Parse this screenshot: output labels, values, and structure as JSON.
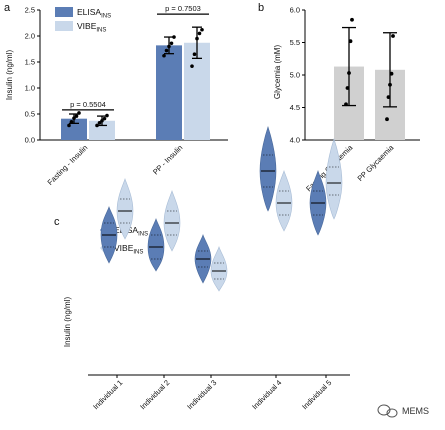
{
  "panels": {
    "a": "a",
    "b": "b",
    "c": "c"
  },
  "legend": [
    {
      "label": "ELISA",
      "sub": "INS",
      "color": "#5b7db5"
    },
    {
      "label": "VIBE",
      "sub": "INS",
      "color": "#c9d8ea"
    }
  ],
  "watermark": {
    "icon": "wechat-icon",
    "text": "MEMS"
  },
  "colors": {
    "elisa": "#5b7db5",
    "vibe": "#c9d8ea",
    "grey": "#d0d0d0"
  },
  "chart_data": [
    {
      "id": "a",
      "type": "bar",
      "ylabel": "Insulin (ng/ml)",
      "ylim": [
        0,
        2.5
      ],
      "yticks": [
        "0.0",
        "0.5",
        "1.0",
        "1.5",
        "2.0",
        "2.5"
      ],
      "categories": [
        "Fasting - Insulin",
        "PP - Insulin"
      ],
      "series": [
        {
          "name": "ELISA",
          "values": [
            0.41,
            1.82
          ],
          "err": [
            0.09,
            0.16
          ],
          "points": [
            [
              0.28,
              0.35,
              0.42,
              0.46,
              0.52
            ],
            [
              1.62,
              1.72,
              1.8,
              1.86,
              1.98
            ]
          ]
        },
        {
          "name": "VIBE",
          "values": [
            0.37,
            1.87
          ],
          "err": [
            0.09,
            0.3
          ],
          "points": [
            [
              0.28,
              0.33,
              0.37,
              0.41,
              0.47
            ],
            [
              1.42,
              1.65,
              1.95,
              2.05,
              2.12
            ]
          ]
        }
      ],
      "annotations": [
        {
          "text": "p = 0.5504",
          "category": 0,
          "y": 0.58
        },
        {
          "text": "p = 0.7503",
          "category": 1,
          "y": 2.42
        }
      ]
    },
    {
      "id": "b",
      "type": "bar",
      "ylabel": "Glycemia (mM)",
      "ylim": [
        4.0,
        6.0
      ],
      "yticks": [
        "4.0",
        "4.5",
        "5.0",
        "5.5",
        "6.0"
      ],
      "categories": [
        "Fasting Glycaemia",
        "PP Glycaemia"
      ],
      "series": [
        {
          "name": "",
          "values": [
            5.13,
            5.08
          ],
          "err": [
            0.6,
            0.57
          ],
          "points": [
            [
              4.55,
              4.8,
              5.03,
              5.52,
              5.85
            ],
            [
              4.32,
              4.66,
              4.85,
              5.02,
              5.6
            ]
          ]
        }
      ]
    },
    {
      "id": "c",
      "type": "violin",
      "ylabel": "Insulin (ng/ml)",
      "ylim": [
        0.2,
        0.7
      ],
      "categories": [
        "Individual 1",
        "Individual 2",
        "Individual 3",
        "Individual 4",
        "Individual 5"
      ],
      "series": [
        {
          "name": "ELISA",
          "median": [
            0.4,
            0.37,
            0.34,
            0.56,
            0.48
          ],
          "q1": [
            0.37,
            0.34,
            0.32,
            0.52,
            0.45
          ],
          "q3": [
            0.43,
            0.4,
            0.36,
            0.6,
            0.51
          ],
          "min": [
            0.33,
            0.31,
            0.28,
            0.46,
            0.4
          ],
          "max": [
            0.47,
            0.44,
            0.4,
            0.67,
            0.56
          ]
        },
        {
          "name": "VIBE",
          "median": [
            0.46,
            0.43,
            0.31,
            0.48,
            0.53
          ],
          "q1": [
            0.43,
            0.4,
            0.29,
            0.45,
            0.5
          ],
          "q3": [
            0.49,
            0.46,
            0.33,
            0.51,
            0.57
          ],
          "min": [
            0.39,
            0.36,
            0.26,
            0.41,
            0.44
          ],
          "max": [
            0.54,
            0.51,
            0.37,
            0.56,
            0.64
          ]
        }
      ]
    }
  ]
}
